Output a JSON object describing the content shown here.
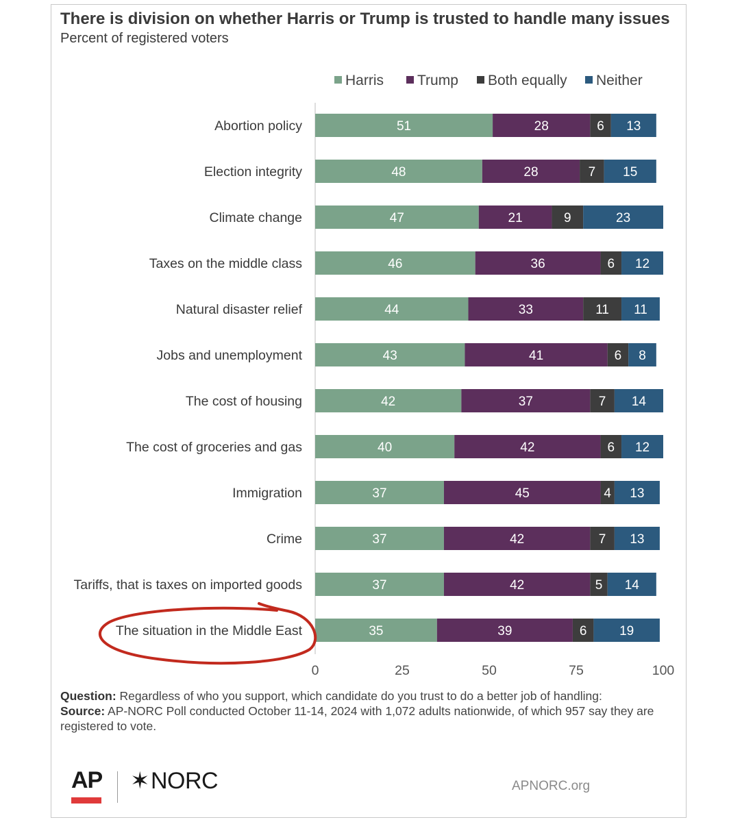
{
  "header": {
    "title": "There is division on whether Harris or Trump is trusted to handle many issues",
    "subtitle": "Percent of registered voters"
  },
  "chart_data": {
    "type": "bar",
    "orientation": "horizontal-stacked",
    "xlim": [
      0,
      100
    ],
    "x_ticks": [
      0,
      25,
      50,
      75,
      100
    ],
    "legend_position": "top",
    "categories": [
      "Abortion policy",
      "Election integrity",
      "Climate change",
      "Taxes on the middle class",
      "Natural disaster relief",
      "Jobs and unemployment",
      "The cost of housing",
      "The cost of groceries and gas",
      "Immigration",
      "Crime",
      "Tariffs, that is taxes on imported goods",
      "The situation in the Middle East"
    ],
    "series": [
      {
        "name": "Harris",
        "color": "#7ba38a",
        "values": [
          51,
          48,
          47,
          46,
          44,
          43,
          42,
          40,
          37,
          37,
          37,
          35
        ]
      },
      {
        "name": "Trump",
        "color": "#5c2f5c",
        "values": [
          28,
          28,
          21,
          36,
          33,
          41,
          37,
          42,
          45,
          42,
          42,
          39
        ]
      },
      {
        "name": "Both equally",
        "color": "#3d3d3d",
        "values": [
          6,
          7,
          9,
          6,
          11,
          6,
          7,
          6,
          4,
          7,
          5,
          6
        ]
      },
      {
        "name": "Neither",
        "color": "#2c5a7e",
        "values": [
          13,
          15,
          23,
          12,
          11,
          8,
          14,
          12,
          13,
          13,
          14,
          19
        ]
      }
    ],
    "annotation": {
      "type": "hand-drawn circle",
      "target": "The situation in the Middle East",
      "color": "#c22a1e"
    }
  },
  "footer": {
    "question_label": "Question:",
    "question_text": " Regardless of who you support, which candidate do you trust to do a better job of handling:",
    "source_label": "Source:",
    "source_text": " AP-NORC Poll conducted October 11-14, 2024 with 1,072 adults nationwide, of which 957 say they are registered to vote.",
    "ap_logo": "AP",
    "norc_star": "✶",
    "norc_logo": "NORC",
    "site": "APNORC.org"
  }
}
